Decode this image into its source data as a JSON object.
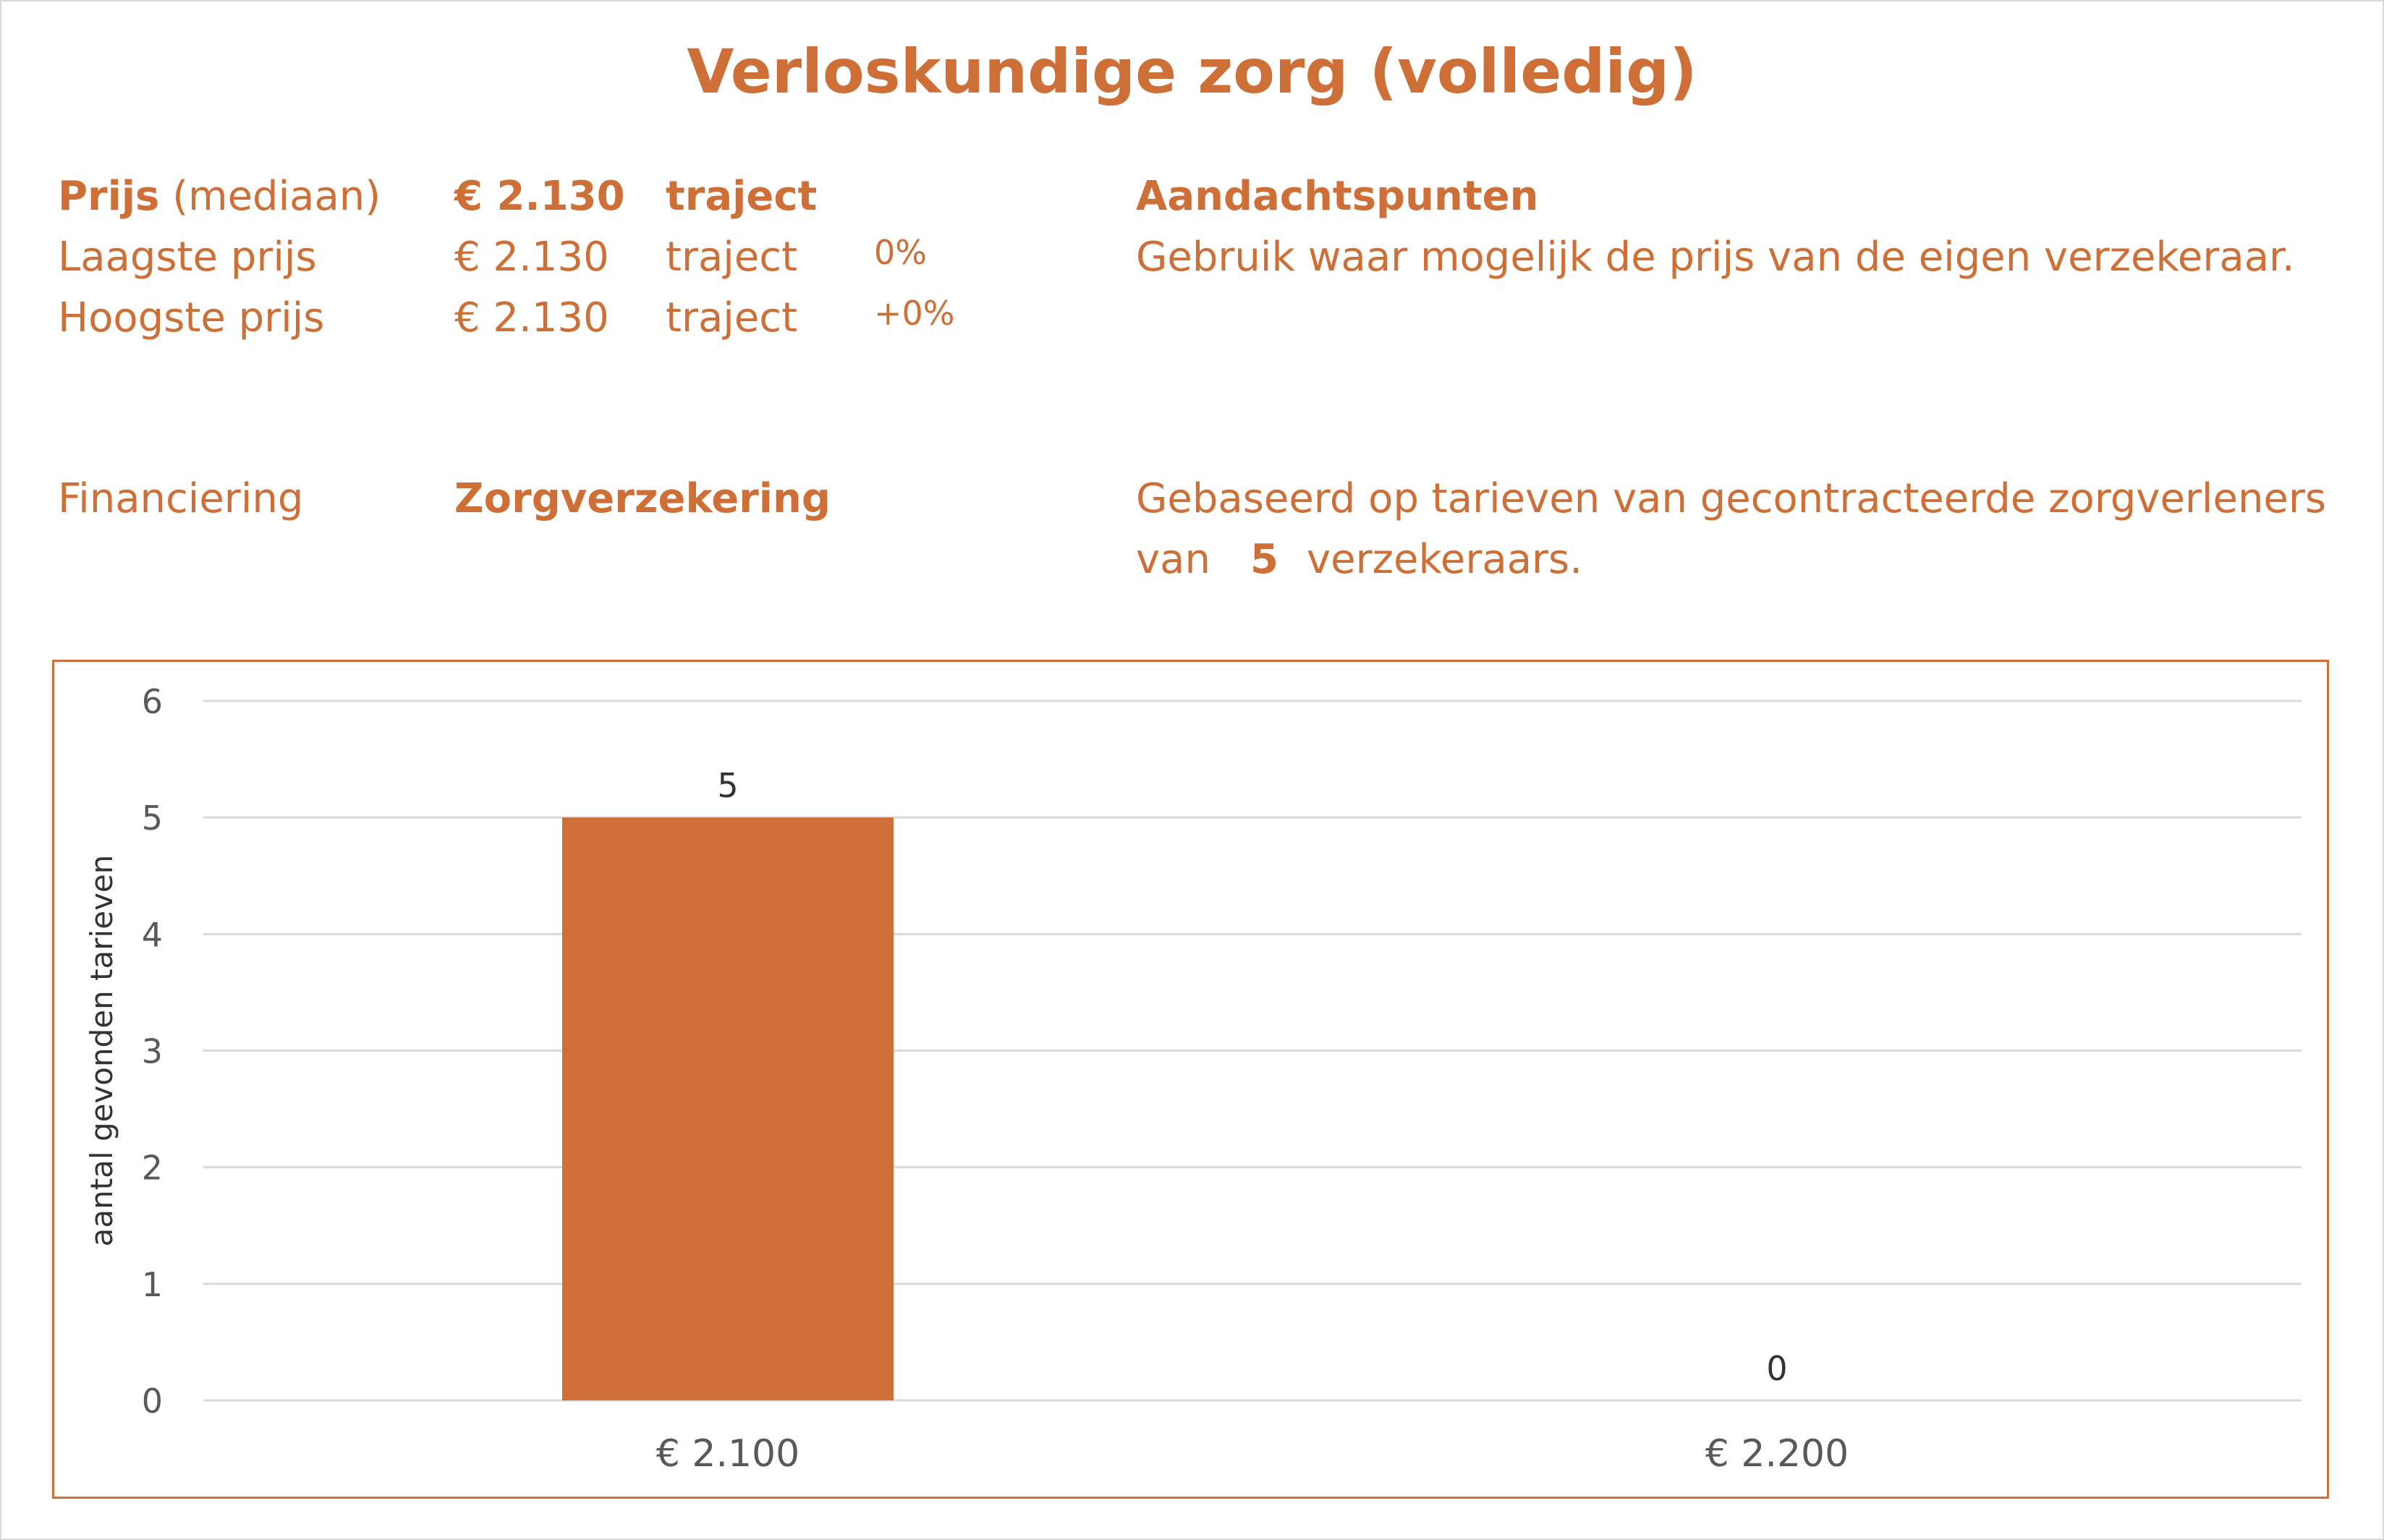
{
  "title": "Verloskundige zorg (volledig)",
  "price": {
    "median_label_bold": "Prijs",
    "median_label_rest": "(mediaan)",
    "median_value": "€ 2.130",
    "median_unit": "traject",
    "lowest_label": "Laagste prijs",
    "lowest_value": "€ 2.130",
    "lowest_unit": "traject",
    "lowest_pct": "0%",
    "highest_label": "Hoogste prijs",
    "highest_value": "€ 2.130",
    "highest_unit": "traject",
    "highest_pct": "+0%"
  },
  "notes": {
    "heading": "Aandachtspunten",
    "text": "Gebruik waar mogelijk de prijs van de eigen verzekeraar."
  },
  "financing": {
    "label": "Financiering",
    "value": "Zorgverzekering"
  },
  "basis": {
    "line1": "Gebaseerd op tarieven van gecontracteerde zorgverleners",
    "line2_pre": "van",
    "insurer_count": "5",
    "line2_post": "verzekeraars."
  },
  "colors": {
    "accent": "#cd6f36",
    "grid": "#d9d9d9",
    "axis_text": "#595959"
  },
  "chart_data": {
    "type": "bar",
    "categories": [
      "€ 2.100",
      "€ 2.200"
    ],
    "values": [
      5,
      0
    ],
    "data_labels": [
      "5",
      "0"
    ],
    "title": "",
    "xlabel": "",
    "ylabel": "aantal gevonden tarieven",
    "ylim": [
      0,
      6
    ],
    "yticks": [
      "0",
      "1",
      "2",
      "3",
      "4",
      "5",
      "6"
    ],
    "grid": true,
    "legend": "none"
  }
}
